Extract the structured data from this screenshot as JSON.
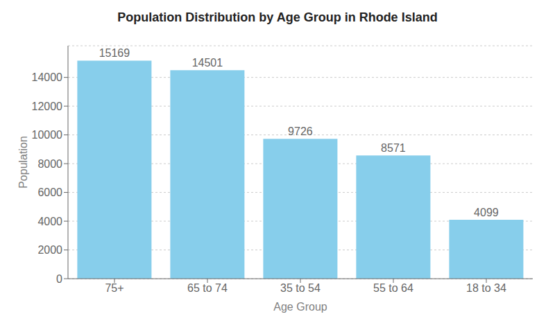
{
  "chart_data": {
    "type": "bar",
    "title": "Population Distribution by Age Group in Rhode Island",
    "xlabel": "Age Group",
    "ylabel": "Population",
    "categories": [
      "75+",
      "65 to 74",
      "35 to 54",
      "55 to 64",
      "18 to 34"
    ],
    "values": [
      15169,
      14501,
      9726,
      8571,
      4099
    ],
    "color": "#87CEEB",
    "ylim": [
      0,
      16200
    ],
    "yticks": [
      0,
      2000,
      4000,
      6000,
      8000,
      10000,
      12000,
      14000
    ],
    "grid": true,
    "data_labels": true
  }
}
